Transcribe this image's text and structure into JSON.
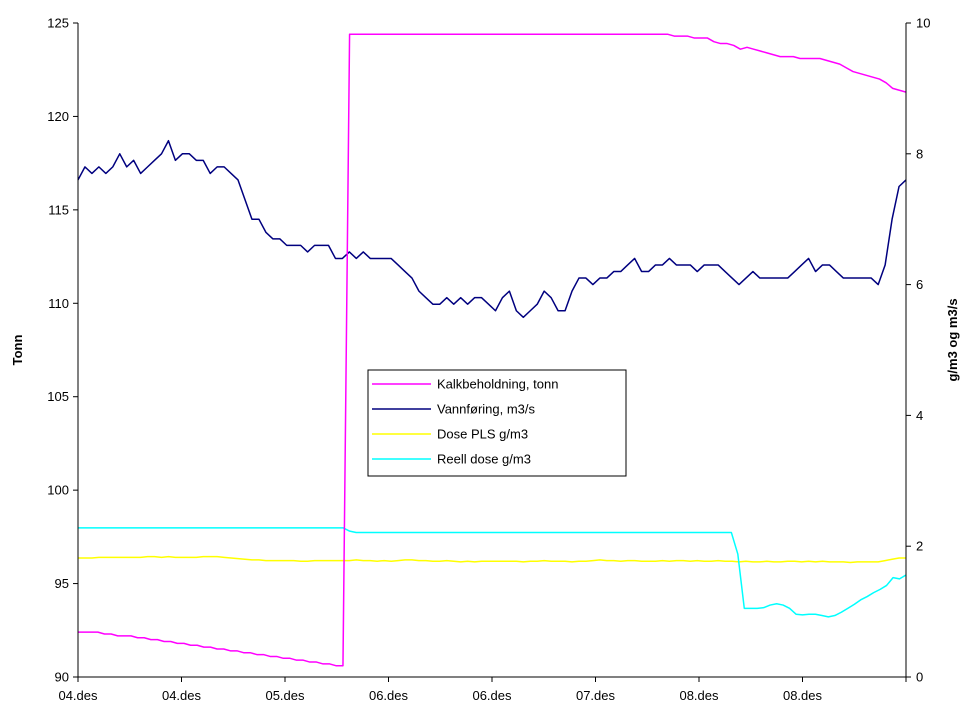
{
  "chart_data": {
    "type": "line",
    "title": "",
    "xlabel": "",
    "ylabel": "Tonn",
    "y2label": "g/m3 og m3/s",
    "ylim": [
      90,
      125
    ],
    "y2lim": [
      0,
      10
    ],
    "yticks": [
      90,
      95,
      100,
      105,
      110,
      115,
      120,
      125
    ],
    "y2ticks": [
      0,
      2,
      4,
      6,
      8,
      10
    ],
    "x_tick_labels": [
      "04.des",
      "04.des",
      "05.des",
      "06.des",
      "06.des",
      "07.des",
      "08.des",
      "08.des"
    ],
    "grid": false,
    "legend_position": "center",
    "series": [
      {
        "name": "Kalkbeholdning, tonn",
        "axis": "left",
        "color": "#ff00ff",
        "values": [
          92.4,
          92.4,
          92.4,
          92.4,
          92.3,
          92.3,
          92.2,
          92.2,
          92.2,
          92.1,
          92.1,
          92.0,
          92.0,
          91.9,
          91.9,
          91.8,
          91.8,
          91.7,
          91.7,
          91.6,
          91.6,
          91.5,
          91.5,
          91.4,
          91.4,
          91.3,
          91.3,
          91.2,
          91.2,
          91.1,
          91.1,
          91.0,
          91.0,
          90.9,
          90.9,
          90.8,
          90.8,
          90.7,
          90.7,
          90.6,
          90.6,
          124.4,
          124.4,
          124.4,
          124.4,
          124.4,
          124.4,
          124.4,
          124.4,
          124.4,
          124.4,
          124.4,
          124.4,
          124.4,
          124.4,
          124.4,
          124.4,
          124.4,
          124.4,
          124.4,
          124.4,
          124.4,
          124.4,
          124.4,
          124.4,
          124.4,
          124.4,
          124.4,
          124.4,
          124.4,
          124.4,
          124.4,
          124.4,
          124.4,
          124.4,
          124.4,
          124.4,
          124.4,
          124.4,
          124.4,
          124.4,
          124.4,
          124.4,
          124.4,
          124.4,
          124.4,
          124.4,
          124.4,
          124.4,
          124.4,
          124.3,
          124.3,
          124.3,
          124.2,
          124.2,
          124.2,
          124.0,
          123.9,
          123.9,
          123.8,
          123.6,
          123.7,
          123.6,
          123.5,
          123.4,
          123.3,
          123.2,
          123.2,
          123.2,
          123.1,
          123.1,
          123.1,
          123.1,
          123.0,
          122.9,
          122.8,
          122.6,
          122.4,
          122.3,
          122.2,
          122.1,
          122.0,
          121.8,
          121.5,
          121.4,
          121.3
        ]
      },
      {
        "name": "Vannføring, m3/s",
        "axis": "right",
        "color": "#00007f",
        "values": [
          7.6,
          7.8,
          7.7,
          7.8,
          7.7,
          7.8,
          8.0,
          7.8,
          7.9,
          7.7,
          7.8,
          7.9,
          8.0,
          8.2,
          7.9,
          8.0,
          8.0,
          7.9,
          7.9,
          7.7,
          7.8,
          7.8,
          7.7,
          7.6,
          7.3,
          7.0,
          7.0,
          6.8,
          6.7,
          6.7,
          6.6,
          6.6,
          6.6,
          6.5,
          6.6,
          6.6,
          6.6,
          6.4,
          6.4,
          6.5,
          6.4,
          6.5,
          6.4,
          6.4,
          6.4,
          6.4,
          6.3,
          6.2,
          6.1,
          5.9,
          5.8,
          5.7,
          5.7,
          5.8,
          5.7,
          5.8,
          5.7,
          5.8,
          5.8,
          5.7,
          5.6,
          5.8,
          5.9,
          5.6,
          5.5,
          5.6,
          5.7,
          5.9,
          5.8,
          5.6,
          5.6,
          5.9,
          6.1,
          6.1,
          6.0,
          6.1,
          6.1,
          6.2,
          6.2,
          6.3,
          6.4,
          6.2,
          6.2,
          6.3,
          6.3,
          6.4,
          6.3,
          6.3,
          6.3,
          6.2,
          6.3,
          6.3,
          6.3,
          6.2,
          6.1,
          6.0,
          6.1,
          6.2,
          6.1,
          6.1,
          6.1,
          6.1,
          6.1,
          6.2,
          6.3,
          6.4,
          6.2,
          6.3,
          6.3,
          6.2,
          6.1,
          6.1,
          6.1,
          6.1,
          6.1,
          6.0,
          6.3,
          7.0,
          7.5,
          7.6
        ]
      },
      {
        "name": "Dose PLS g/m3",
        "axis": "right",
        "color": "#ffff00",
        "values": [
          1.82,
          1.82,
          1.82,
          1.83,
          1.83,
          1.83,
          1.83,
          1.83,
          1.83,
          1.83,
          1.84,
          1.84,
          1.83,
          1.84,
          1.83,
          1.83,
          1.83,
          1.83,
          1.84,
          1.84,
          1.84,
          1.83,
          1.82,
          1.81,
          1.8,
          1.79,
          1.79,
          1.78,
          1.78,
          1.78,
          1.78,
          1.78,
          1.77,
          1.77,
          1.78,
          1.78,
          1.78,
          1.78,
          1.78,
          1.78,
          1.79,
          1.78,
          1.78,
          1.77,
          1.78,
          1.77,
          1.78,
          1.79,
          1.79,
          1.78,
          1.78,
          1.77,
          1.77,
          1.78,
          1.77,
          1.76,
          1.77,
          1.76,
          1.77,
          1.77,
          1.77,
          1.77,
          1.77,
          1.77,
          1.76,
          1.77,
          1.77,
          1.78,
          1.77,
          1.77,
          1.77,
          1.76,
          1.77,
          1.77,
          1.78,
          1.79,
          1.78,
          1.78,
          1.77,
          1.78,
          1.78,
          1.77,
          1.77,
          1.77,
          1.78,
          1.77,
          1.78,
          1.78,
          1.77,
          1.78,
          1.77,
          1.77,
          1.78,
          1.77,
          1.77,
          1.76,
          1.77,
          1.76,
          1.76,
          1.77,
          1.76,
          1.76,
          1.77,
          1.77,
          1.76,
          1.77,
          1.76,
          1.77,
          1.76,
          1.76,
          1.76,
          1.75,
          1.76,
          1.76,
          1.76,
          1.76,
          1.78,
          1.8,
          1.82,
          1.82
        ]
      },
      {
        "name": "Reell dose g/m3",
        "axis": "right",
        "color": "#00ffff",
        "values": [
          2.28,
          2.28,
          2.28,
          2.28,
          2.28,
          2.28,
          2.28,
          2.28,
          2.28,
          2.28,
          2.28,
          2.28,
          2.28,
          2.28,
          2.28,
          2.28,
          2.28,
          2.28,
          2.28,
          2.28,
          2.28,
          2.28,
          2.28,
          2.28,
          2.28,
          2.28,
          2.28,
          2.28,
          2.28,
          2.28,
          2.28,
          2.28,
          2.28,
          2.28,
          2.28,
          2.28,
          2.28,
          2.28,
          2.28,
          2.28,
          2.28,
          2.28,
          2.23,
          2.21,
          2.21,
          2.21,
          2.21,
          2.21,
          2.21,
          2.21,
          2.21,
          2.21,
          2.21,
          2.21,
          2.21,
          2.21,
          2.21,
          2.21,
          2.21,
          2.21,
          2.21,
          2.21,
          2.21,
          2.21,
          2.21,
          2.21,
          2.21,
          2.21,
          2.21,
          2.21,
          2.21,
          2.21,
          2.21,
          2.21,
          2.21,
          2.21,
          2.21,
          2.21,
          2.21,
          2.21,
          2.21,
          2.21,
          2.21,
          2.21,
          2.21,
          2.21,
          2.21,
          2.21,
          2.21,
          2.21,
          2.21,
          2.21,
          2.21,
          2.21,
          2.21,
          2.21,
          2.21,
          2.21,
          2.21,
          2.21,
          2.21,
          2.21,
          1.88,
          1.05,
          1.05,
          1.05,
          1.06,
          1.1,
          1.12,
          1.1,
          1.05,
          0.96,
          0.95,
          0.96,
          0.96,
          0.94,
          0.92,
          0.94,
          0.99,
          1.05,
          1.11,
          1.18,
          1.23,
          1.29,
          1.34,
          1.4,
          1.52,
          1.5,
          1.56
        ]
      }
    ]
  }
}
